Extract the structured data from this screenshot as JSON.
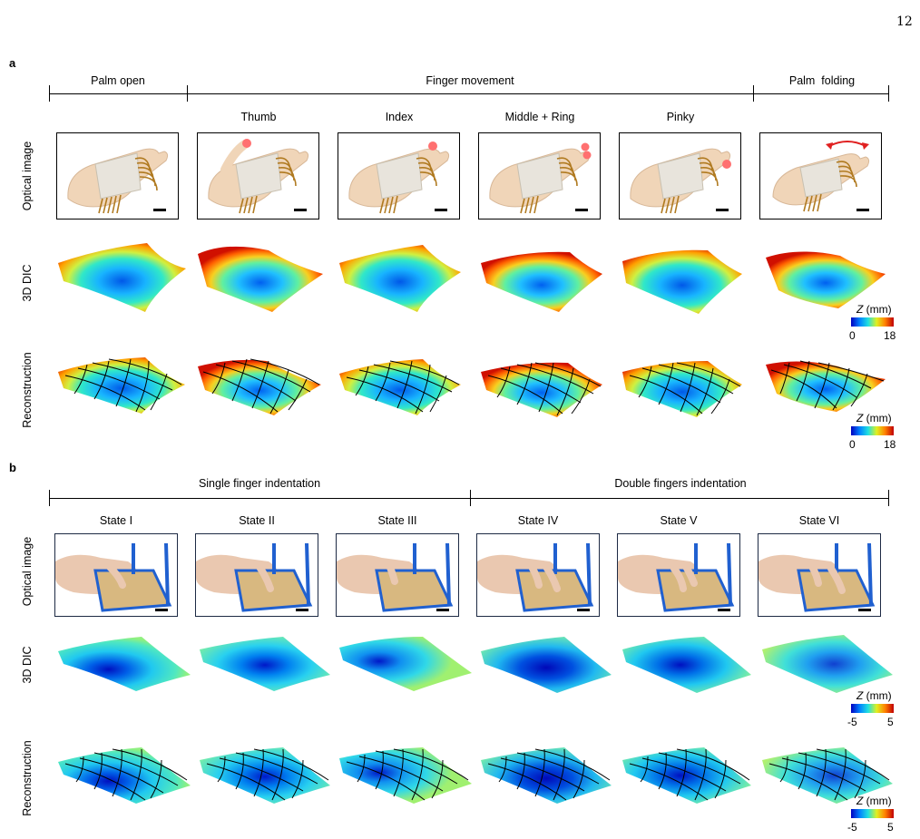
{
  "page_number": "12",
  "panel_a": {
    "letter": "a",
    "groups": [
      "Palm open",
      "Finger movement",
      "Palm  folding"
    ],
    "columns": [
      "Thumb",
      "Index",
      "Middle + Ring",
      "Pinky"
    ],
    "row_labels": [
      "Optical image",
      "3D DIC",
      "Reconstruction"
    ],
    "colorbar": {
      "label_var": "Z",
      "label_unit": " (mm)",
      "min": "0",
      "max": "18"
    }
  },
  "panel_b": {
    "letter": "b",
    "groups": [
      "Single finger indentation",
      "Double fingers indentation"
    ],
    "columns": [
      "State I",
      "State II",
      "State III",
      "State IV",
      "State V",
      "State VI"
    ],
    "row_labels": [
      "Optical image",
      "3D DIC",
      "Reconstruction"
    ],
    "colorbar": {
      "label_var": "Z",
      "label_unit": " (mm)",
      "min": "-5",
      "max": "5"
    }
  },
  "colors": {
    "jet": [
      "#0000c8",
      "#00a0ff",
      "#20e0c0",
      "#c0f040",
      "#ffb000",
      "#e02000"
    ]
  }
}
